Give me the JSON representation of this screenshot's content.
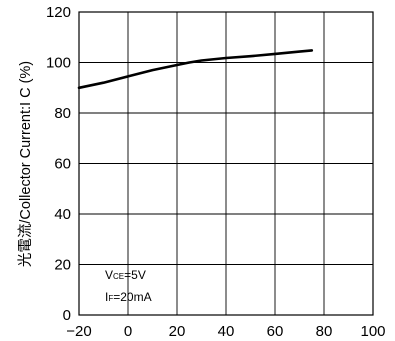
{
  "chart_data": {
    "type": "line",
    "title": "",
    "xlabel": "",
    "ylabel": "光電流/Collector Current:I C (%)",
    "xlim": [
      -20,
      100
    ],
    "ylim": [
      0,
      120
    ],
    "x_ticks": [
      "−20",
      "0",
      "20",
      "40",
      "60",
      "80",
      "100"
    ],
    "y_ticks": [
      "0",
      "20",
      "40",
      "60",
      "80",
      "100",
      "120"
    ],
    "grid": true,
    "series": [
      {
        "x": [
          -20,
          -10,
          0,
          10,
          20,
          25,
          30,
          40,
          50,
          60,
          70,
          75
        ],
        "y": [
          90,
          92,
          94.5,
          97,
          99,
          100,
          100.8,
          101.8,
          102.5,
          103.4,
          104.3,
          104.8
        ]
      }
    ],
    "annotations": {
      "vce": {
        "main": "V",
        "sub": "CE",
        "rest": "=5V"
      },
      "if": {
        "main": "I",
        "sub": "F",
        "rest": "=20mA"
      }
    }
  }
}
